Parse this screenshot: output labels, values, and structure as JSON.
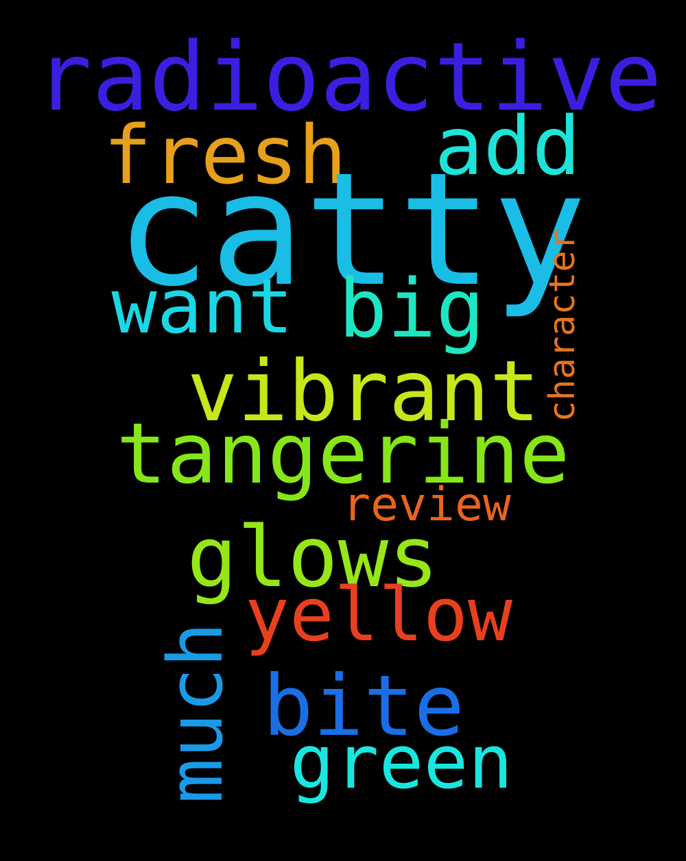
{
  "words": {
    "radioactive": {
      "text": "radioactive",
      "color": "#3a1fe0"
    },
    "fresh": {
      "text": "fresh",
      "color": "#e6a01c"
    },
    "add": {
      "text": "add",
      "color": "#1de3d8"
    },
    "catty": {
      "text": "catty",
      "color": "#1abde6"
    },
    "character": {
      "text": "character",
      "color": "#e8741e"
    },
    "want": {
      "text": "want",
      "color": "#1ad7e6"
    },
    "big": {
      "text": "big",
      "color": "#1ee6c2"
    },
    "vibrant": {
      "text": "vibrant",
      "color": "#c8e61a"
    },
    "tangerine": {
      "text": "tangerine",
      "color": "#86e61a"
    },
    "review": {
      "text": "review",
      "color": "#e8641e"
    },
    "glows": {
      "text": "glows",
      "color": "#96e61a"
    },
    "yellow": {
      "text": "yellow",
      "color": "#e8401e"
    },
    "much": {
      "text": "much",
      "color": "#1a9ae6"
    },
    "bite": {
      "text": "bite",
      "color": "#1a6ee6"
    },
    "green": {
      "text": "green",
      "color": "#1ae6e0"
    }
  }
}
